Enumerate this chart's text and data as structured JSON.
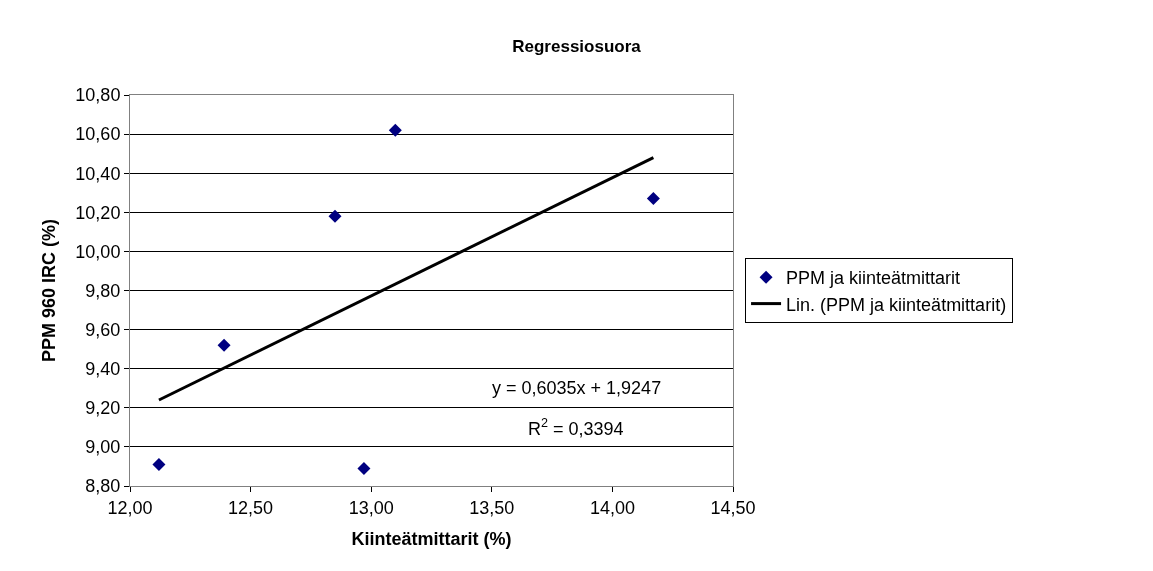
{
  "chart_data": {
    "type": "scatter",
    "title": "Regressiosuora",
    "xlabel": "Kiinteätmittarit (%)",
    "ylabel": "PPM 960 IRC (%)",
    "series": [
      {
        "name": "PPM ja kiinteätmittarit",
        "color": "#000080",
        "marker": "diamond",
        "x": [
          12.12,
          12.39,
          12.85,
          12.97,
          13.1,
          14.17
        ],
        "values": [
          8.91,
          9.52,
          10.18,
          8.89,
          10.62,
          10.27
        ]
      },
      {
        "name": "Lin. (PPM ja kiinteätmittarit)",
        "type": "line",
        "color": "#000000",
        "line_style": "solid",
        "x": [
          12.12,
          14.17
        ],
        "values": [
          9.24,
          10.48
        ]
      }
    ],
    "annotations": [
      "y = 0,6035x + 1,9247",
      "R$^{2}$ = 0,3394"
    ],
    "xlim": [
      12.0,
      14.5
    ],
    "xticks": [
      {
        "value": 12.0,
        "label": "12,00"
      },
      {
        "value": 12.5,
        "label": "12,50"
      },
      {
        "value": 13.0,
        "label": "13,00"
      },
      {
        "value": 13.5,
        "label": "13,50"
      },
      {
        "value": 14.0,
        "label": "14,00"
      },
      {
        "value": 14.5,
        "label": "14,50"
      }
    ],
    "ylim": [
      8.8,
      10.8
    ],
    "yticks": [
      {
        "value": 8.8,
        "label": "8,80"
      },
      {
        "value": 9.0,
        "label": "9,00"
      },
      {
        "value": 9.2,
        "label": "9,20"
      },
      {
        "value": 9.4,
        "label": "9,40"
      },
      {
        "value": 9.6,
        "label": "9,60"
      },
      {
        "value": 9.8,
        "label": "9,80"
      },
      {
        "value": 10.0,
        "label": "10,00"
      },
      {
        "value": 10.2,
        "label": "10,20"
      },
      {
        "value": 10.4,
        "label": "10,40"
      },
      {
        "value": 10.6,
        "label": "10,60"
      },
      {
        "value": 10.8,
        "label": "10,80"
      }
    ],
    "grid": "y",
    "legend": "right"
  }
}
